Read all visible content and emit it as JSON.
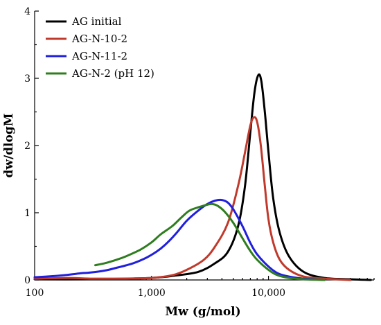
{
  "chart_data": {
    "type": "line",
    "title": "",
    "xlabel": "Mw (g/mol)",
    "ylabel": "dw/dlogM",
    "x_scale": "log",
    "xlim": [
      100,
      80000
    ],
    "ylim": [
      0,
      4
    ],
    "x_ticks": [
      {
        "value": 100,
        "label": "100"
      },
      {
        "value": 1000,
        "label": "1,000"
      },
      {
        "value": 10000,
        "label": "10,000"
      }
    ],
    "y_ticks": [
      {
        "value": 0,
        "label": "0"
      },
      {
        "value": 1,
        "label": "1"
      },
      {
        "value": 2,
        "label": "2"
      },
      {
        "value": 3,
        "label": "3"
      },
      {
        "value": 4,
        "label": "4"
      }
    ],
    "grid": false,
    "legend": "top-left",
    "series": [
      {
        "name": "AG initial",
        "color": "#000000",
        "points": [
          [
            100,
            0.01
          ],
          [
            300,
            0.01
          ],
          [
            600,
            0.02
          ],
          [
            1000,
            0.03
          ],
          [
            1500,
            0.06
          ],
          [
            2500,
            0.12
          ],
          [
            3500,
            0.25
          ],
          [
            4500,
            0.42
          ],
          [
            5500,
            0.8
          ],
          [
            6300,
            1.4
          ],
          [
            7000,
            2.2
          ],
          [
            7600,
            2.8
          ],
          [
            8200,
            3.05
          ],
          [
            8700,
            2.95
          ],
          [
            9300,
            2.5
          ],
          [
            10000,
            1.9
          ],
          [
            11000,
            1.2
          ],
          [
            12500,
            0.7
          ],
          [
            15000,
            0.35
          ],
          [
            20000,
            0.12
          ],
          [
            30000,
            0.03
          ],
          [
            50000,
            0.01
          ],
          [
            75000,
            0.0
          ]
        ]
      },
      {
        "name": "AG-N-10-2",
        "color": "#c0392b",
        "points": [
          [
            100,
            0.02
          ],
          [
            200,
            0.03
          ],
          [
            300,
            0.02
          ],
          [
            600,
            0.02
          ],
          [
            1000,
            0.03
          ],
          [
            1500,
            0.07
          ],
          [
            2000,
            0.15
          ],
          [
            2800,
            0.3
          ],
          [
            3500,
            0.5
          ],
          [
            4500,
            0.85
          ],
          [
            5500,
            1.4
          ],
          [
            6300,
            1.9
          ],
          [
            7000,
            2.3
          ],
          [
            7500,
            2.42
          ],
          [
            8000,
            2.35
          ],
          [
            8600,
            2.0
          ],
          [
            9300,
            1.4
          ],
          [
            10000,
            0.9
          ],
          [
            11000,
            0.55
          ],
          [
            12500,
            0.3
          ],
          [
            15000,
            0.15
          ],
          [
            20000,
            0.05
          ],
          [
            30000,
            0.02
          ],
          [
            50000,
            0.0
          ]
        ]
      },
      {
        "name": "AG-N-11-2",
        "color": "#1f1fdd",
        "points": [
          [
            100,
            0.04
          ],
          [
            150,
            0.06
          ],
          [
            200,
            0.08
          ],
          [
            250,
            0.1
          ],
          [
            300,
            0.11
          ],
          [
            400,
            0.14
          ],
          [
            500,
            0.18
          ],
          [
            700,
            0.25
          ],
          [
            900,
            0.33
          ],
          [
            1100,
            0.42
          ],
          [
            1300,
            0.52
          ],
          [
            1600,
            0.68
          ],
          [
            2000,
            0.88
          ],
          [
            2500,
            1.03
          ],
          [
            3000,
            1.13
          ],
          [
            3500,
            1.18
          ],
          [
            4000,
            1.19
          ],
          [
            4500,
            1.15
          ],
          [
            5000,
            1.05
          ],
          [
            6000,
            0.8
          ],
          [
            7000,
            0.55
          ],
          [
            8000,
            0.38
          ],
          [
            10000,
            0.2
          ],
          [
            12000,
            0.1
          ],
          [
            15000,
            0.05
          ],
          [
            20000,
            0.02
          ],
          [
            30000,
            0.0
          ]
        ]
      },
      {
        "name": "AG-N-2 (pH 12)",
        "color": "#2e7d1e",
        "points": [
          [
            330,
            0.22
          ],
          [
            400,
            0.25
          ],
          [
            500,
            0.3
          ],
          [
            600,
            0.35
          ],
          [
            800,
            0.45
          ],
          [
            1000,
            0.56
          ],
          [
            1200,
            0.68
          ],
          [
            1500,
            0.8
          ],
          [
            1800,
            0.93
          ],
          [
            2100,
            1.03
          ],
          [
            2500,
            1.08
          ],
          [
            3000,
            1.12
          ],
          [
            3300,
            1.13
          ],
          [
            3700,
            1.1
          ],
          [
            4200,
            1.02
          ],
          [
            5000,
            0.85
          ],
          [
            6000,
            0.62
          ],
          [
            7000,
            0.43
          ],
          [
            8000,
            0.3
          ],
          [
            10000,
            0.15
          ],
          [
            12000,
            0.07
          ],
          [
            15000,
            0.03
          ],
          [
            20000,
            0.01
          ],
          [
            30000,
            0.0
          ]
        ]
      }
    ]
  }
}
